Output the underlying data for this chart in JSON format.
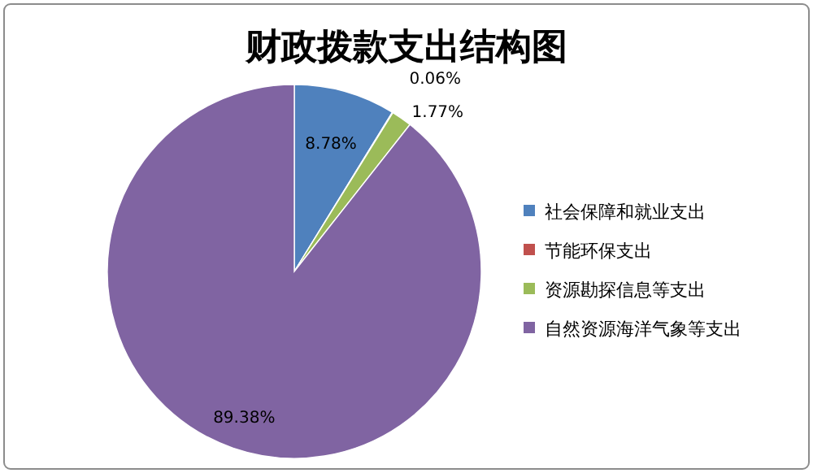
{
  "chart_data": {
    "type": "pie",
    "title": "财政拨款支出结构图",
    "categories": [
      "社会保障和就业支出",
      "节能环保支出",
      "资源勘探信息等支出",
      "自然资源海洋气象等支出"
    ],
    "values": [
      8.78,
      0.06,
      1.77,
      89.38
    ],
    "value_labels": [
      "8.78%",
      "0.06%",
      "1.77%",
      "89.38%"
    ],
    "colors": [
      "#4f81bd",
      "#c0504d",
      "#9bbb59",
      "#8064a2"
    ],
    "legend": "right"
  }
}
